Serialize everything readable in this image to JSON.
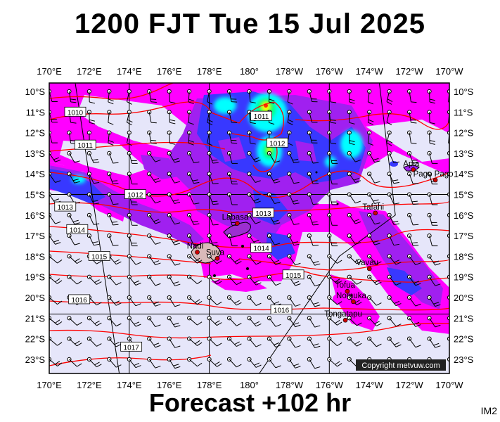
{
  "title": "1200 FJT Tue 15 Jul 2025",
  "footer": "Forecast +102 hr",
  "corner_label": "IM2",
  "copyright": "Copyright metvuw.com",
  "map": {
    "lon_labels": [
      "170°E",
      "172°E",
      "174°E",
      "176°E",
      "178°E",
      "180°",
      "178°W",
      "176°W",
      "174°W",
      "172°W",
      "170°W"
    ],
    "lat_labels": [
      "10°S",
      "11°S",
      "12°S",
      "13°S",
      "14°S",
      "15°S",
      "16°S",
      "17°S",
      "18°S",
      "19°S",
      "20°S",
      "21°S",
      "22°S",
      "23°S"
    ],
    "places": [
      {
        "name": "Apia",
        "lon": -171.8,
        "lat": -13.8
      },
      {
        "name": "Pago Pago",
        "lon": -170.7,
        "lat": -14.3
      },
      {
        "name": "Tafahi",
        "lon": -173.7,
        "lat": -15.9
      },
      {
        "name": "Labasa",
        "lon": 179.4,
        "lat": -16.4
      },
      {
        "name": "Nadi",
        "lon": 177.4,
        "lat": -17.8
      },
      {
        "name": "Suva",
        "lon": 178.4,
        "lat": -18.1
      },
      {
        "name": "Vavau",
        "lon": -174.0,
        "lat": -18.6
      },
      {
        "name": "Tofua",
        "lon": -175.1,
        "lat": -19.7
      },
      {
        "name": "Nomuka",
        "lon": -174.8,
        "lat": -20.2
      },
      {
        "name": "Tongatapu",
        "lon": -175.2,
        "lat": -21.1
      }
    ],
    "isobars": [
      {
        "label": "1010",
        "lon": 171.3,
        "lat": -11.0
      },
      {
        "label": "1011",
        "lon": 171.8,
        "lat": -12.6
      },
      {
        "label": "1011",
        "lon": 180.6,
        "lat": -11.2
      },
      {
        "label": "1012",
        "lon": 181.4,
        "lat": -12.5
      },
      {
        "label": "1012",
        "lon": 174.3,
        "lat": -15.0
      },
      {
        "label": "1013",
        "lon": 170.8,
        "lat": -15.6
      },
      {
        "label": "1013",
        "lon": 180.7,
        "lat": -15.9
      },
      {
        "label": "1014",
        "lon": 171.4,
        "lat": -16.7
      },
      {
        "label": "1014",
        "lon": 180.6,
        "lat": -17.6
      },
      {
        "label": "1015",
        "lon": 172.5,
        "lat": -18.0
      },
      {
        "label": "1015",
        "lon": 182.2,
        "lat": -18.9
      },
      {
        "label": "1016",
        "lon": 171.5,
        "lat": -20.1
      },
      {
        "label": "1016",
        "lon": 181.6,
        "lat": -20.6
      },
      {
        "label": "1017",
        "lon": 174.1,
        "lat": -22.4
      }
    ],
    "colors": {
      "background": "#e6e6fa",
      "light_rain": "#ff00ff",
      "medium_rain": "#a020f0",
      "heavy_rain": "#3838ff",
      "very_heavy_rain": "#00ffff",
      "extreme_rain": "#ffff00",
      "isobar": "#ff0000"
    }
  }
}
